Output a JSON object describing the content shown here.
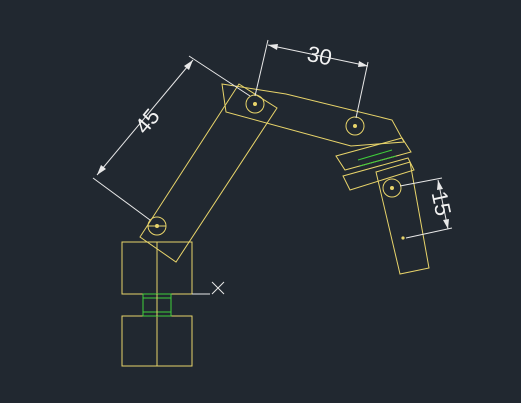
{
  "canvas": {
    "background": "#212830",
    "part_color": "#e8d46a",
    "joint_color": "#3fcf3a",
    "dimension_color": "#e8e8e8"
  },
  "dimensions": {
    "upper_arm_length": "45",
    "forearm_length": "30",
    "end_link_offset": "15"
  }
}
